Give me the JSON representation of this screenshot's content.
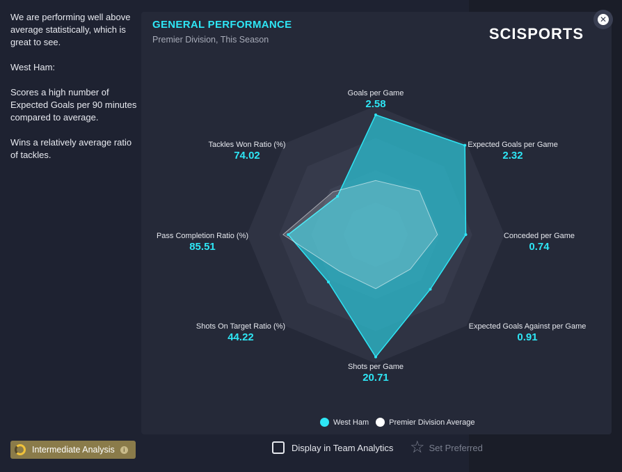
{
  "left_panel": {
    "summary": "We are performing well above average statistically, which is great to see.",
    "team_heading": "West Ham:",
    "points": [
      "Scores a high number of Expected Goals per 90 minutes compared to average.",
      "Wins a relatively average ratio of tackles."
    ]
  },
  "card": {
    "title": "GENERAL PERFORMANCE",
    "subtitle": "Premier Division, This Season",
    "brand": "SCISPORTS",
    "close_icon": "close-icon"
  },
  "colors": {
    "accent": "#2ee6f5",
    "team_fill": "#2bc4d6",
    "average_fill": "#ffffff",
    "card_bg": "#252938"
  },
  "chart_data": {
    "type": "radar",
    "axes": [
      {
        "label": "Goals per Game",
        "value": "2.58"
      },
      {
        "label": "Expected Goals per Game",
        "value": "2.32"
      },
      {
        "label": "Conceded per Game",
        "value": "0.74"
      },
      {
        "label": "Expected Goals Against per Game",
        "value": "0.91"
      },
      {
        "label": "Shots per Game",
        "value": "20.71"
      },
      {
        "label": "Shots On Target Ratio (%)",
        "value": "44.22"
      },
      {
        "label": "Pass Completion Ratio (%)",
        "value": "85.51"
      },
      {
        "label": "Tackles Won Ratio (%)",
        "value": "74.02"
      }
    ],
    "series": [
      {
        "name": "West Ham",
        "relative": [
          0.93,
          0.98,
          0.7,
          0.6,
          0.95,
          0.52,
          0.68,
          0.42
        ]
      },
      {
        "name": "Premier Division Average",
        "relative": [
          0.42,
          0.48,
          0.48,
          0.38,
          0.42,
          0.4,
          0.72,
          0.47
        ]
      }
    ],
    "grid_rings": 4,
    "legend": "bottom"
  },
  "legend": {
    "team": "West Ham",
    "average": "Premier Division Average"
  },
  "footer": {
    "analysis_badge": "Intermediate Analysis",
    "display_toggle": "Display in Team Analytics",
    "set_preferred": "Set Preferred"
  }
}
